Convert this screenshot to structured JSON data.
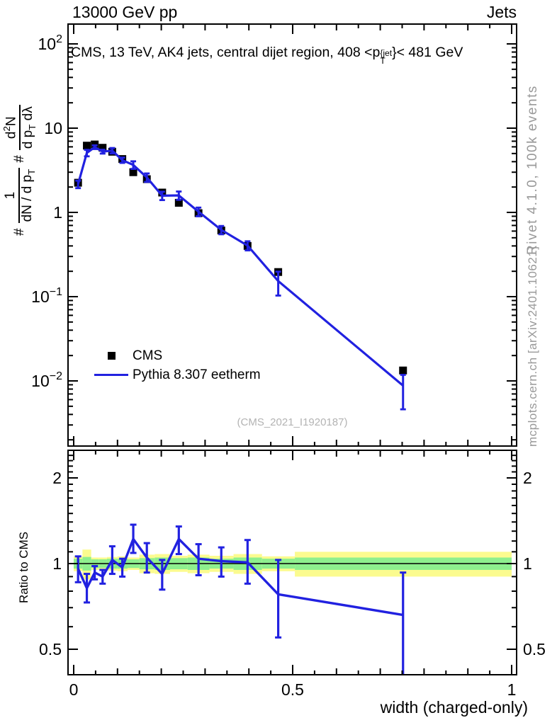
{
  "header": {
    "beam": "13000 GeV pp",
    "group": "Jets"
  },
  "title": {
    "prefix": "CMS, 13 TeV, AK4 jets, central dijet region, 408 <p",
    "sup": "{jet",
    "sub": "T",
    "suffix": "}< 481 GeV"
  },
  "ylabel": {
    "hash1": "#",
    "frac1_num": "1",
    "frac1_den_main": "dN / d p",
    "frac1_den_sub": "T",
    "hash2": "#",
    "frac2_num_main": "d",
    "frac2_num_sup": "2",
    "frac2_num_tail": "N",
    "frac2_den_main": "d p",
    "frac2_den_sub": "T",
    "frac2_den_tail": " dλ"
  },
  "ratio_ylabel": "Ratio to CMS",
  "xlabel": "width (charged-only)",
  "watermark": "(CMS_2021_I1920187)",
  "side_notes": {
    "rivet": "Rivet 4.1.0,  100k events",
    "mcplots": "mcplots.cern.ch [arXiv:2401.10621]"
  },
  "legend": [
    {
      "label": "CMS",
      "marker": "square",
      "color": "#000000"
    },
    {
      "label": "Pythia 8.307 eetherm",
      "marker": "line",
      "color": "#2121e0"
    }
  ],
  "colors": {
    "blue": "#2121e0",
    "black": "#000000",
    "band_yellow": "#fbfb8f",
    "band_green": "#8eef8e",
    "gray_text": "#999999",
    "watermark": "#b3b3b3"
  },
  "chart_data": {
    "type": "line",
    "title": "CMS, 13 TeV, AK4 jets, central dijet region, 408 <p_T^{jet} < 481 GeV",
    "xlabel": "width (charged-only)",
    "ylabel": "1/(dN/dp_T) d2N/(dp_T dlambda)",
    "x": [
      0.01,
      0.03,
      0.048,
      0.066,
      0.088,
      0.111,
      0.136,
      0.167,
      0.202,
      0.24,
      0.285,
      0.337,
      0.397,
      0.467,
      0.752
    ],
    "bin_edges": [
      0,
      0.02,
      0.04,
      0.057,
      0.076,
      0.1,
      0.123,
      0.15,
      0.185,
      0.22,
      0.26,
      0.31,
      0.365,
      0.43,
      0.505,
      1.0
    ],
    "series": [
      {
        "name": "CMS",
        "type": "scatter",
        "marker": "square",
        "values": [
          2.25,
          6.2,
          6.4,
          5.85,
          5.25,
          4.3,
          3.0,
          2.48,
          1.72,
          1.3,
          0.98,
          0.61,
          0.4,
          0.196,
          0.0133
        ]
      },
      {
        "name": "Pythia 8.307 eetherm",
        "type": "line",
        "values": [
          2.16,
          5.08,
          5.95,
          5.27,
          5.41,
          4.17,
          3.66,
          2.6,
          1.58,
          1.59,
          1.02,
          0.62,
          0.404,
          0.153,
          0.0088
        ],
        "err_up": [
          0.22,
          0.45,
          0.3,
          0.28,
          0.4,
          0.3,
          0.38,
          0.3,
          0.18,
          0.18,
          0.12,
          0.07,
          0.05,
          0.045,
          0.003
        ],
        "err_dn": [
          0.22,
          0.45,
          0.3,
          0.28,
          0.4,
          0.3,
          0.38,
          0.3,
          0.18,
          0.18,
          0.12,
          0.07,
          0.05,
          0.05,
          0.0042
        ]
      }
    ],
    "ratio": {
      "name": "Ratio to CMS",
      "values": [
        0.96,
        0.82,
        0.93,
        0.9,
        1.03,
        0.97,
        1.22,
        1.05,
        0.92,
        1.22,
        1.04,
        1.02,
        1.01,
        0.78,
        0.66
      ],
      "err_up": [
        0.1,
        0.1,
        0.05,
        0.05,
        0.12,
        0.07,
        0.15,
        0.13,
        0.11,
        0.13,
        0.13,
        0.12,
        0.2,
        0.25,
        0.27
      ],
      "err_dn": [
        0.1,
        0.09,
        0.05,
        0.05,
        0.11,
        0.07,
        0.13,
        0.12,
        0.11,
        0.14,
        0.13,
        0.12,
        0.16,
        0.23,
        0.3
      ],
      "band_yellow_halfwidth": [
        0.06,
        0.12,
        0.05,
        0.05,
        0.055,
        0.06,
        0.05,
        0.075,
        0.08,
        0.065,
        0.075,
        0.065,
        0.08,
        0.06,
        0.1
      ],
      "band_green_halfwidth": [
        0.04,
        0.055,
        0.035,
        0.035,
        0.04,
        0.04,
        0.035,
        0.045,
        0.05,
        0.045,
        0.05,
        0.04,
        0.05,
        0.04,
        0.05
      ]
    },
    "axes": {
      "x": {
        "scale": "linear",
        "range": [
          0,
          1
        ],
        "minor_step": 0.05,
        "ticks": [
          {
            "v": 0,
            "label": "0"
          },
          {
            "v": 0.5,
            "label": "0.5"
          },
          {
            "v": 1,
            "label": "1"
          }
        ]
      },
      "y_main": {
        "scale": "log",
        "range": [
          0.0017,
          170
        ],
        "ticks": [
          {
            "v": 100,
            "base": "10",
            "exp": "2"
          },
          {
            "v": 10,
            "base": "10"
          },
          {
            "v": 1,
            "base": "1"
          },
          {
            "v": 0.1,
            "base": "10",
            "exp": "−1"
          },
          {
            "v": 0.01,
            "base": "10",
            "exp": "−2"
          }
        ]
      },
      "y_ratio": {
        "scale": "log",
        "range": [
          0.41,
          2.54
        ],
        "ticks": [
          {
            "v": 2,
            "label": "2"
          },
          {
            "v": 1,
            "label": "1"
          },
          {
            "v": 0.5,
            "label": "0.5"
          }
        ],
        "minor_ticks": [
          0.6,
          0.7,
          0.8,
          0.9,
          1.1,
          1.2,
          1.3,
          1.4,
          1.5,
          1.6,
          1.7,
          1.8,
          1.9,
          2.1,
          2.2,
          2.3,
          2.4,
          2.5
        ]
      }
    },
    "legend_entries": [
      "CMS",
      "Pythia 8.307 eetherm"
    ]
  }
}
